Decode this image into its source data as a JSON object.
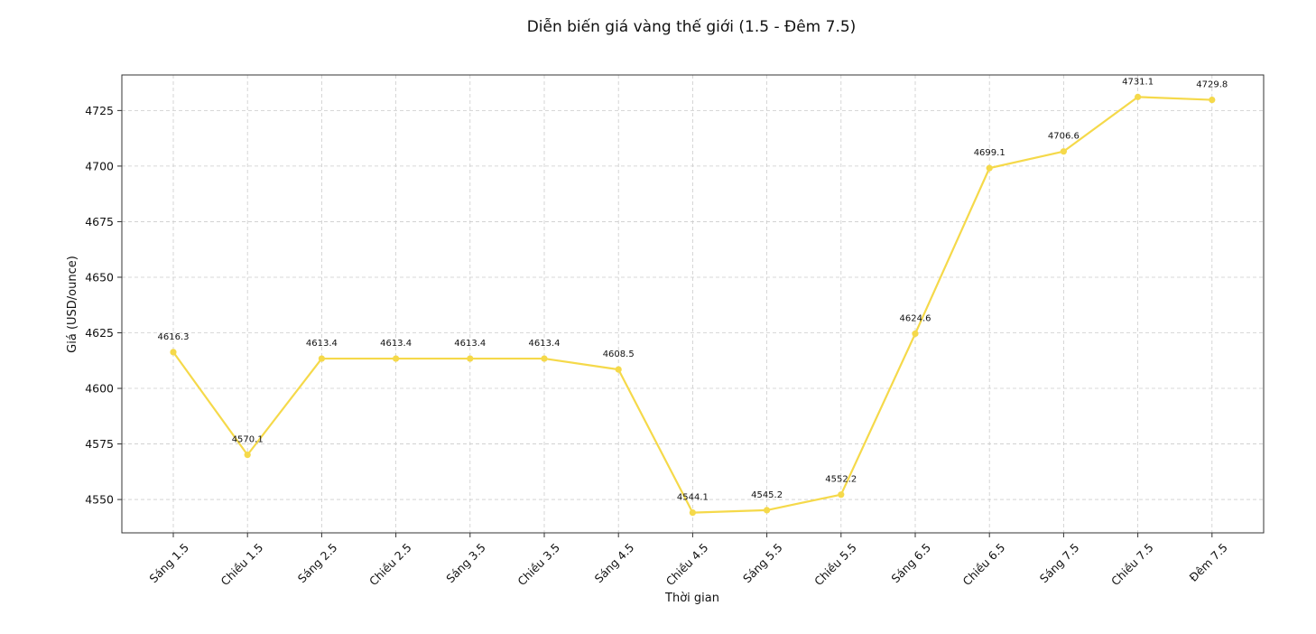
{
  "chart_data": {
    "type": "line",
    "title": "Diễn biến giá vàng thế giới (1.5 - Đêm 7.5)",
    "xlabel": "Thời gian",
    "ylabel": "Giá (USD/ounce)",
    "categories": [
      "Sáng 1.5",
      "Chiều 1.5",
      "Sáng 2.5",
      "Chiều 2.5",
      "Sáng 3.5",
      "Chiều 3.5",
      "Sáng 4.5",
      "Chiều 4.5",
      "Sáng 5.5",
      "Chiều 5.5",
      "Sáng 6.5",
      "Chiều 6.5",
      "Sáng 7.5",
      "Chiều 7.5",
      "Đêm 7.5"
    ],
    "values": [
      4616.3,
      4570.1,
      4613.4,
      4613.4,
      4613.4,
      4613.4,
      4608.5,
      4544.1,
      4545.2,
      4552.2,
      4624.6,
      4699.1,
      4706.6,
      4731.1,
      4729.8
    ],
    "data_labels": [
      "4616.3",
      "4570.1",
      "4613.4",
      "4613.4",
      "4613.4",
      "4613.4",
      "4608.5",
      "4544.1",
      "4545.2",
      "4552.2",
      "4624.6",
      "4699.1",
      "4706.6",
      "4731.1",
      "4729.8"
    ],
    "yticks": [
      4550,
      4575,
      4600,
      4625,
      4650,
      4675,
      4700,
      4725
    ],
    "ylim": [
      4535,
      4741
    ],
    "grid": true,
    "line_color": "#f5d94a",
    "grid_color": "#cccccc"
  }
}
